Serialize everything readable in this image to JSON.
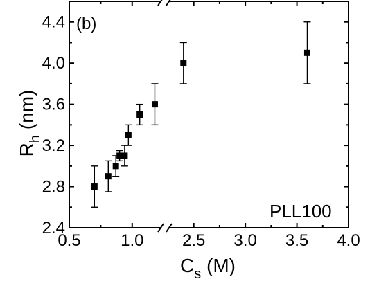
{
  "chart_data": {
    "type": "scatter",
    "panel_label": "(b)",
    "annotation": "PLL100",
    "xlabel": {
      "main": "C",
      "sub": "s",
      "unit": " (M)"
    },
    "ylabel": {
      "main": "R",
      "sub": "h",
      "unit": " (nm)"
    },
    "x_axis": {
      "broken": true,
      "segments": [
        {
          "xlim": [
            0.5,
            1.26
          ],
          "ticks": [
            0.5,
            1.0
          ],
          "tick_labels": [
            "0.5",
            "1.0"
          ]
        },
        {
          "xlim": [
            2.22,
            4.0
          ],
          "ticks": [
            2.5,
            3.0,
            3.5,
            4.0
          ],
          "tick_labels": [
            "2.5",
            "3.0",
            "3.5",
            "4.0"
          ]
        }
      ]
    },
    "ylim": [
      2.4,
      4.6
    ],
    "y_ticks": [
      2.4,
      2.8,
      3.2,
      3.6,
      4.0,
      4.4
    ],
    "y_tick_labels": [
      "2.4",
      "2.8",
      "3.2",
      "3.6",
      "4.0",
      "4.4"
    ],
    "series": [
      {
        "marker": "square",
        "color": "#000000",
        "points": [
          {
            "x": 0.7,
            "y": 2.8,
            "err": 0.2
          },
          {
            "x": 0.81,
            "y": 2.9,
            "err": 0.15
          },
          {
            "x": 0.87,
            "y": 3.0,
            "err": 0.1
          },
          {
            "x": 0.9,
            "y": 3.1,
            "err": 0.05
          },
          {
            "x": 0.94,
            "y": 3.1,
            "err": 0.1
          },
          {
            "x": 0.97,
            "y": 3.3,
            "err": 0.1
          },
          {
            "x": 1.06,
            "y": 3.5,
            "err": 0.1
          },
          {
            "x": 1.18,
            "y": 3.6,
            "err": 0.2
          },
          {
            "x": 2.4,
            "y": 4.0,
            "err": 0.2
          },
          {
            "x": 3.6,
            "y": 4.1,
            "err": 0.3
          }
        ]
      }
    ],
    "grid": false
  }
}
